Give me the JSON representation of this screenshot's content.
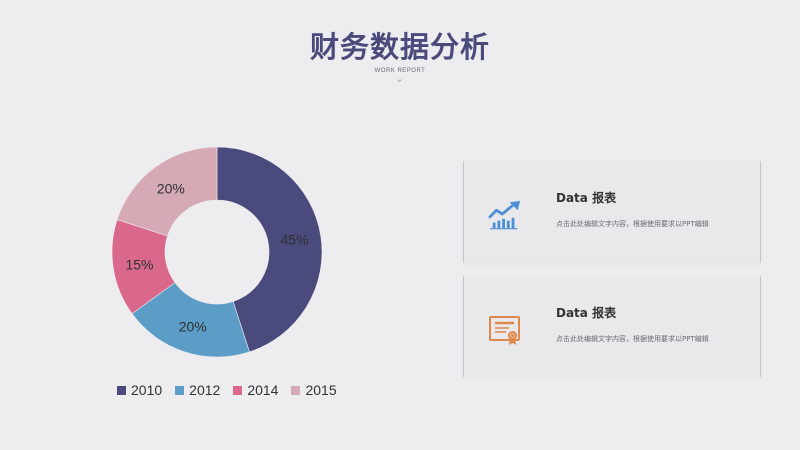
{
  "header": {
    "title": "财务数据分析",
    "subtitle": "WORK REPORT"
  },
  "chart_data": {
    "type": "pie",
    "donut": true,
    "categories": [
      "2010",
      "2012",
      "2014",
      "2015"
    ],
    "values": [
      45,
      20,
      15,
      20
    ],
    "data_labels": [
      "45%",
      "20%",
      "15%",
      "20%"
    ],
    "colors": [
      "#4b4a7d",
      "#5b9dc6",
      "#d9688b",
      "#d5aab4"
    ],
    "legend": "bottom"
  },
  "cards": [
    {
      "title": "Data 报表",
      "text": "点击此处编辑文字内容，根据使用要求以PPT编辑",
      "icon": "growth-chart-icon",
      "icon_color": "#4d8fd6"
    },
    {
      "title": "Data 报表",
      "text": "点击此处编辑文字内容，根据使用要求以PPT编辑",
      "icon": "certificate-icon",
      "icon_color": "#e0874a"
    }
  ],
  "colors": {
    "title": "#4b4a7c",
    "background": "#ededef"
  }
}
